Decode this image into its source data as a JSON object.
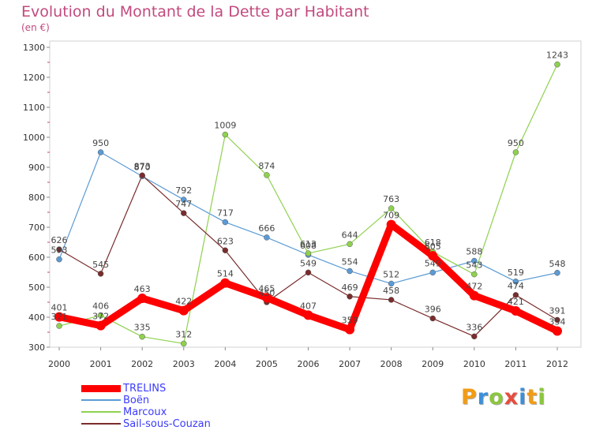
{
  "title": "Evolution du Montant de la Dette par Habitant",
  "subtitle": "(en €)",
  "logo": {
    "text": "Proxiti",
    "letters": [
      "P",
      "r",
      "o",
      "x",
      "i",
      "t",
      "i"
    ],
    "colors": [
      "#f39c12",
      "#3b8fd9",
      "#8cc63f",
      "#e74c3c",
      "#3b8fd9",
      "#f39c12",
      "#8cc63f"
    ]
  },
  "chart_data": {
    "type": "line",
    "title": "Evolution du Montant de la Dette par Habitant",
    "subtitle": "(en €)",
    "x": [
      "2000",
      "2001",
      "2002",
      "2003",
      "2004",
      "2005",
      "2006",
      "2007",
      "2008",
      "2009",
      "2010",
      "2011",
      "2012"
    ],
    "yticks": [
      300,
      400,
      500,
      600,
      700,
      800,
      900,
      1000,
      1100,
      1200,
      1300
    ],
    "ylim": [
      300,
      1300
    ],
    "grid": false,
    "legend_position": "bottom-left",
    "series": [
      {
        "name": "TRELINS",
        "color": "#ff0000",
        "values": [
          401,
          372,
          463,
          422,
          514,
          465,
          407,
          359,
          709,
          605,
          472,
          421,
          354
        ],
        "labels": [
          "401",
          "372",
          "463",
          "422",
          "514",
          "465",
          "407",
          "359",
          "709",
          "605",
          "472",
          "421",
          "354"
        ]
      },
      {
        "name": "Boën",
        "color": "#5b9bd5",
        "values": [
          593,
          950,
          870,
          792,
          717,
          666,
          608,
          554,
          512,
          549,
          588,
          519,
          548
        ],
        "labels": [
          "593",
          "950",
          "870",
          "792",
          "717",
          "666",
          "608",
          "554",
          "512",
          "549",
          "588",
          "519",
          "548"
        ]
      },
      {
        "name": "Marcoux",
        "color": "#8fd14f",
        "values": [
          371,
          406,
          335,
          312,
          1009,
          874,
          613,
          644,
          763,
          618,
          543,
          950,
          1243
        ],
        "labels": [
          "371",
          "406",
          "335",
          "312",
          "1009",
          "874",
          "613",
          "644",
          "763",
          "618",
          "543",
          "950",
          "1243"
        ]
      },
      {
        "name": "Sail-sous-Couzan",
        "color": "#7a2c2c",
        "values": [
          626,
          545,
          873,
          747,
          623,
          450,
          549,
          469,
          458,
          396,
          336,
          474,
          391
        ],
        "labels": [
          "626",
          "545",
          "873",
          "747",
          "623",
          "450",
          "549",
          "469",
          "458",
          "396",
          "336",
          "474",
          "391"
        ]
      }
    ]
  }
}
